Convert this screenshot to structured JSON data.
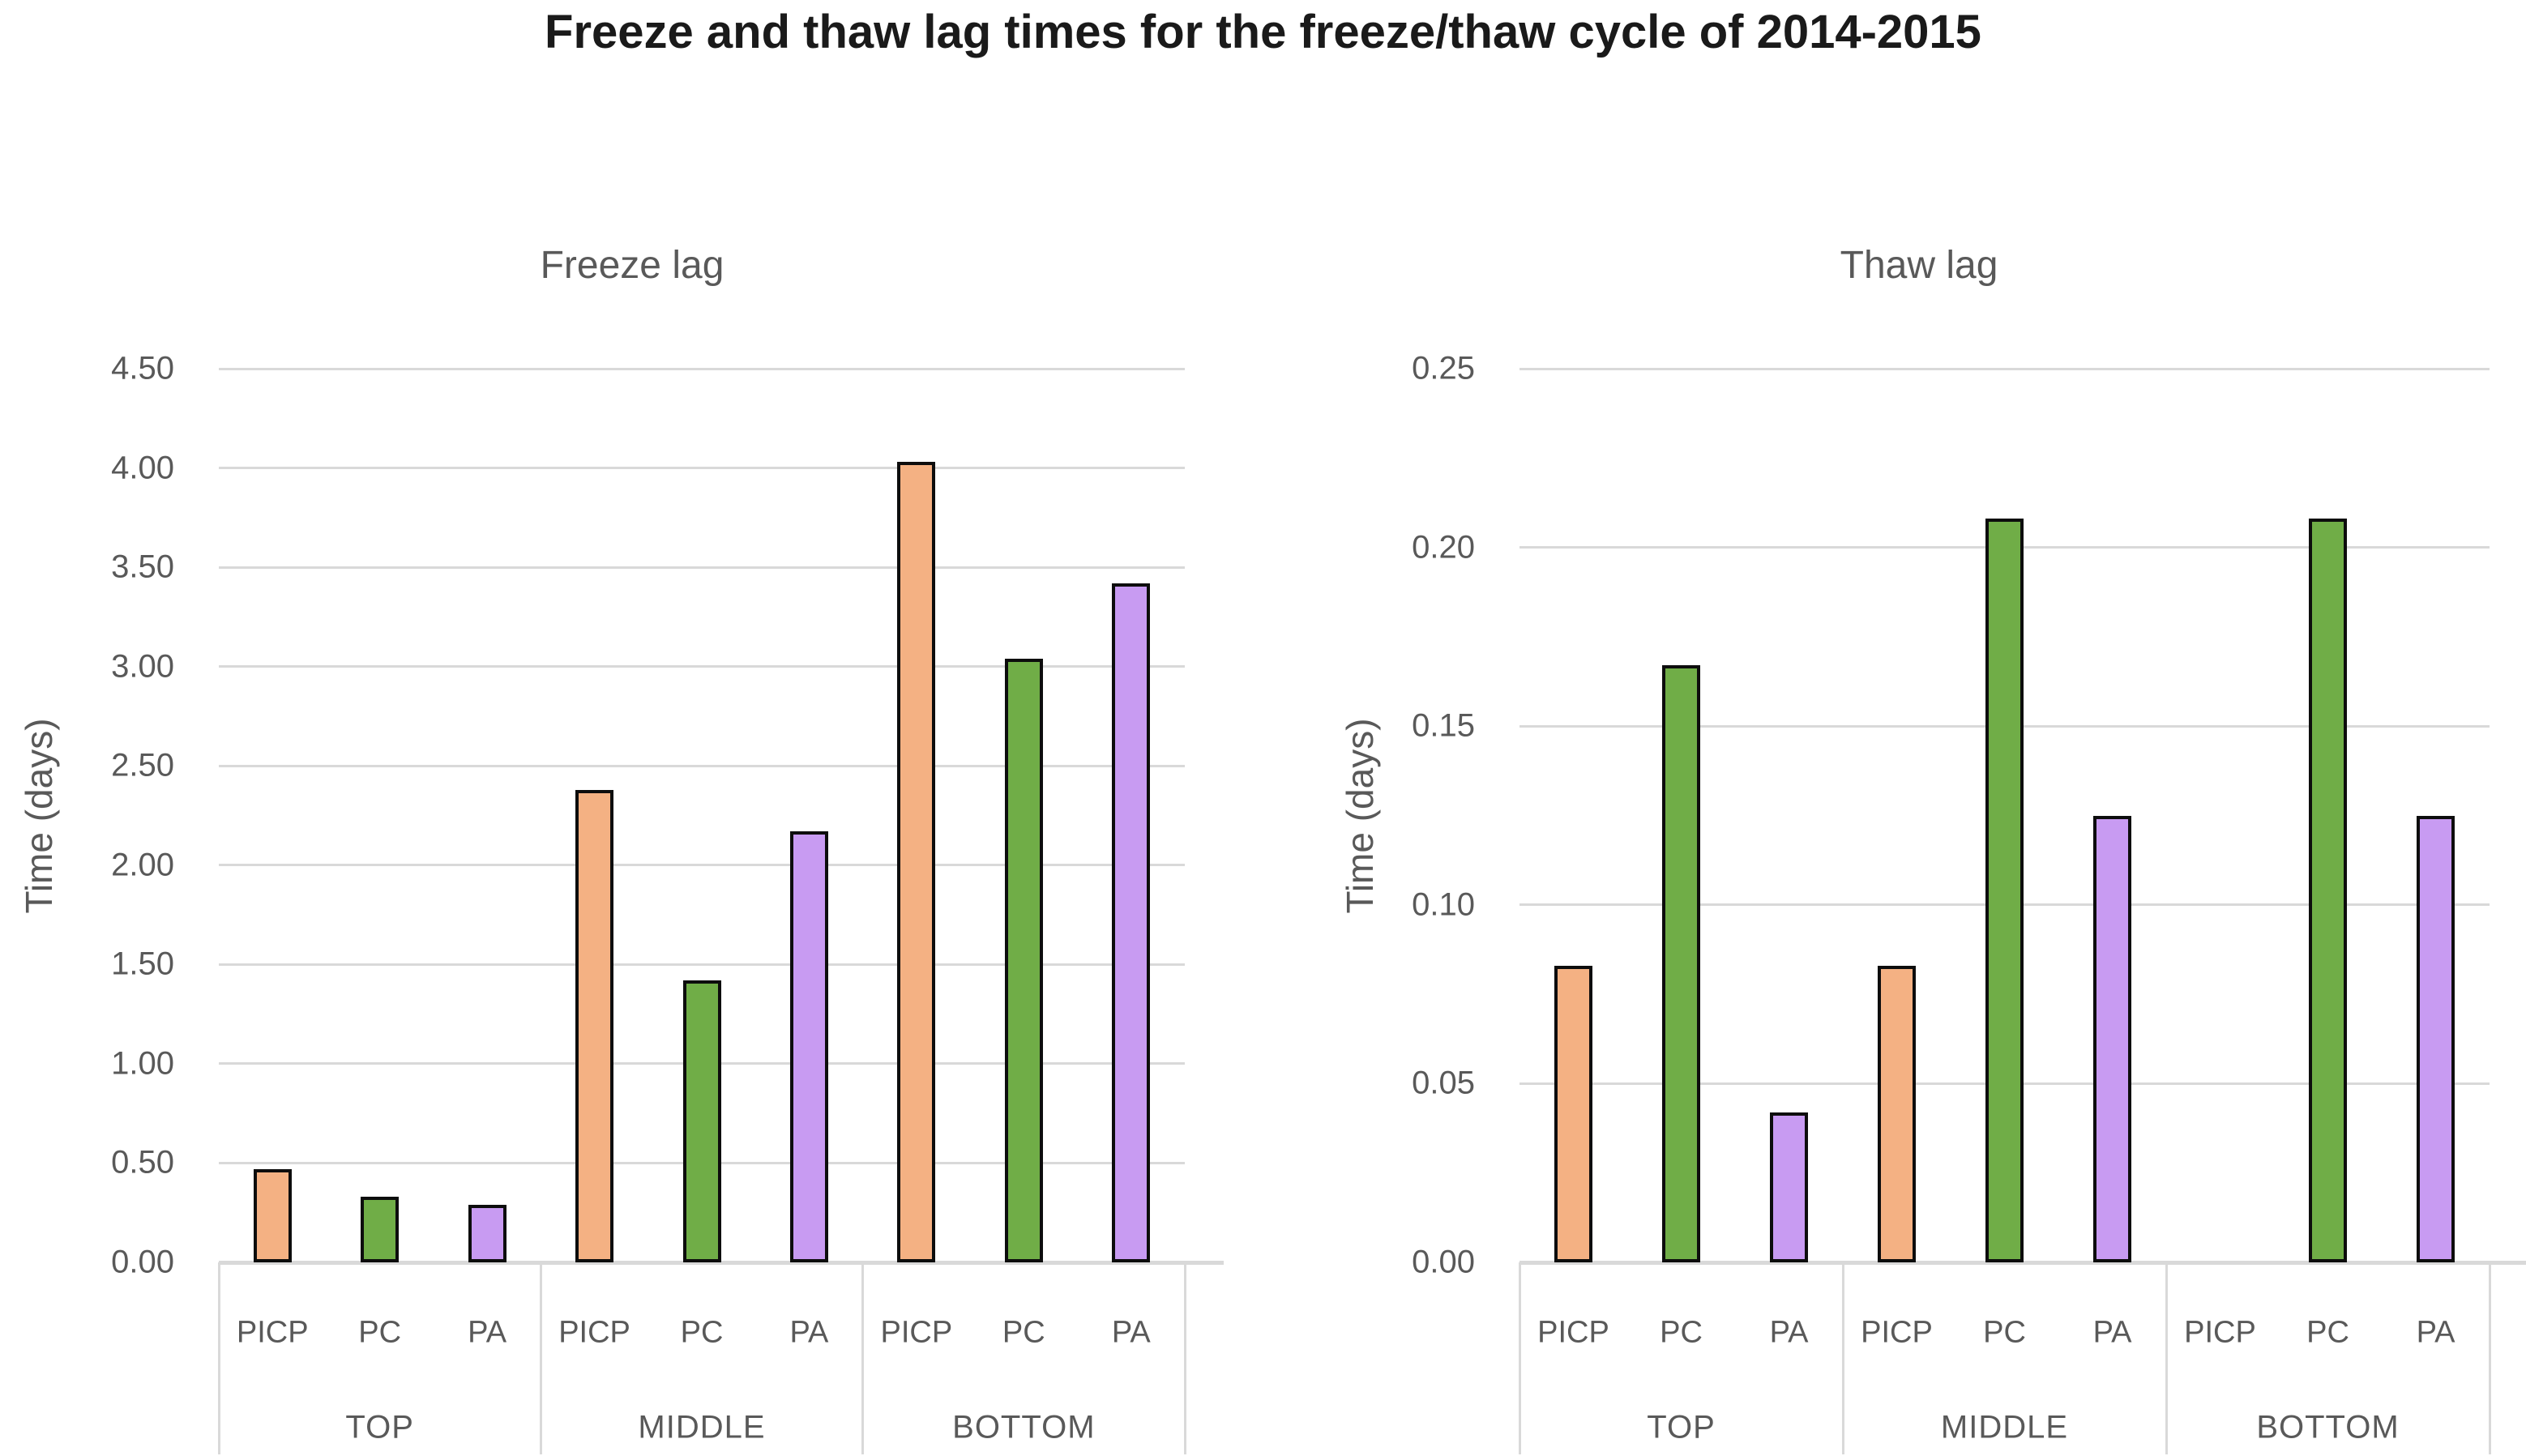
{
  "page_title": "Freeze and thaw lag times for the freeze/thaw cycle of 2014-2015",
  "colors": {
    "picp": "#F4B183",
    "pc": "#70AD47",
    "pa": "#C89BF2",
    "bar_border": "#0D0D0D",
    "gridline": "#D9D9D9",
    "axis_text": "#595959",
    "title_text": "#1A1A1A",
    "background": "#FFFFFF"
  },
  "chart_data": [
    {
      "type": "bar",
      "title": "Freeze lag",
      "xlabel": "",
      "ylabel": "Time (days)",
      "ylim": [
        0,
        4.5
      ],
      "ytick_step": 0.5,
      "ytick_labels": [
        "0.00",
        "0.50",
        "1.00",
        "1.50",
        "2.00",
        "2.50",
        "3.00",
        "3.50",
        "4.00",
        "4.50"
      ],
      "grid": true,
      "legend_position": "none",
      "categories": [
        "TOP",
        "MIDDLE",
        "BOTTOM"
      ],
      "bar_labels": [
        "PICP",
        "PC",
        "PA"
      ],
      "series": [
        {
          "name": "PICP",
          "color_key": "picp",
          "values": [
            0.47,
            2.38,
            4.03
          ]
        },
        {
          "name": "PC",
          "color_key": "pc",
          "values": [
            0.33,
            1.42,
            3.04
          ]
        },
        {
          "name": "PA",
          "color_key": "pa",
          "values": [
            0.29,
            2.17,
            3.42
          ]
        }
      ]
    },
    {
      "type": "bar",
      "title": "Thaw lag",
      "xlabel": "",
      "ylabel": "Time (days)",
      "ylim": [
        0,
        0.25
      ],
      "ytick_step": 0.05,
      "ytick_labels": [
        "0.00",
        "0.05",
        "0.10",
        "0.15",
        "0.20",
        "0.25"
      ],
      "grid": true,
      "legend_position": "none",
      "categories": [
        "TOP",
        "MIDDLE",
        "BOTTOM"
      ],
      "bar_labels": [
        "PICP",
        "PC",
        "PA"
      ],
      "series": [
        {
          "name": "PICP",
          "color_key": "picp",
          "values": [
            0.083,
            0.083,
            0
          ]
        },
        {
          "name": "PC",
          "color_key": "pc",
          "values": [
            0.167,
            0.208,
            0.208
          ]
        },
        {
          "name": "PA",
          "color_key": "pa",
          "values": [
            0.042,
            0.125,
            0.125
          ]
        }
      ]
    }
  ]
}
